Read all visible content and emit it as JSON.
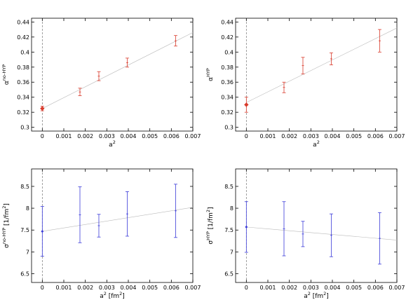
{
  "chart_data": [
    {
      "type": "scatter",
      "xlabel": "a",
      "xlabel_sup": "2",
      "xlabel_unit": "",
      "ylabel": "α",
      "ylabel_sup": "no-HYP",
      "ylabel_unit": "",
      "xlim": [
        -0.0005,
        0.007
      ],
      "ylim": [
        0.295,
        0.445
      ],
      "xticks": [
        0,
        0.001,
        0.002,
        0.003,
        0.004,
        0.005,
        0.006,
        0.007
      ],
      "yticks": [
        0.3,
        0.32,
        0.34,
        0.36,
        0.38,
        0.4,
        0.42,
        0.44
      ],
      "color": "#d93a2b",
      "points": [
        {
          "x": 0.00175,
          "y": 0.347,
          "err": 0.005
        },
        {
          "x": 0.00263,
          "y": 0.368,
          "err": 0.006
        },
        {
          "x": 0.00395,
          "y": 0.386,
          "err": 0.006
        },
        {
          "x": 0.0062,
          "y": 0.415,
          "err": 0.007
        }
      ],
      "extrapolated": {
        "x": 0,
        "y": 0.325,
        "err": 0.003
      },
      "fit": {
        "y0": 0.325,
        "y1": 0.426
      }
    },
    {
      "type": "scatter",
      "xlabel": "a",
      "xlabel_sup": "2",
      "xlabel_unit": "",
      "ylabel": "α",
      "ylabel_sup": "HYP",
      "ylabel_unit": "",
      "xlim": [
        -0.0005,
        0.007
      ],
      "ylim": [
        0.295,
        0.445
      ],
      "xticks": [
        0,
        0.001,
        0.002,
        0.003,
        0.004,
        0.005,
        0.006,
        0.007
      ],
      "yticks": [
        0.3,
        0.32,
        0.34,
        0.36,
        0.38,
        0.4,
        0.42,
        0.44
      ],
      "color": "#d93a2b",
      "points": [
        {
          "x": 0.00175,
          "y": 0.353,
          "err": 0.007
        },
        {
          "x": 0.00263,
          "y": 0.382,
          "err": 0.011
        },
        {
          "x": 0.00395,
          "y": 0.391,
          "err": 0.008
        },
        {
          "x": 0.0062,
          "y": 0.415,
          "err": 0.015
        }
      ],
      "extrapolated": {
        "x": 0,
        "y": 0.33,
        "err": 0.01
      },
      "fit": {
        "y0": 0.333,
        "y1": 0.432
      }
    },
    {
      "type": "scatter",
      "xlabel": "a",
      "xlabel_sup": "2",
      "xlabel_unit": " [fm",
      "ylabel": "σ",
      "ylabel_sup": "no-HYP",
      "ylabel_unit": " [1/fm",
      "unit_sup": "2",
      "xlim": [
        -0.0005,
        0.007
      ],
      "ylim": [
        6.3,
        8.9
      ],
      "xticks": [
        0,
        0.001,
        0.002,
        0.003,
        0.004,
        0.005,
        0.006,
        0.007
      ],
      "yticks": [
        6.5,
        7,
        7.5,
        8,
        8.5
      ],
      "color": "#3a3ad9",
      "points": [
        {
          "x": 0.00175,
          "y": 7.85,
          "err": 0.64
        },
        {
          "x": 0.00263,
          "y": 7.6,
          "err": 0.26
        },
        {
          "x": 0.00395,
          "y": 7.87,
          "err": 0.51
        },
        {
          "x": 0.0062,
          "y": 7.94,
          "err": 0.61
        }
      ],
      "extrapolated": {
        "x": 0,
        "y": 7.47,
        "err": 0.57
      },
      "fit": {
        "y0": 7.47,
        "y1": 8.02
      }
    },
    {
      "type": "scatter",
      "xlabel": "a",
      "xlabel_sup": "2",
      "xlabel_unit": " [fm",
      "ylabel": "σ",
      "ylabel_sup": "HYP",
      "ylabel_unit": " [1/fm",
      "unit_sup": "2",
      "xlim": [
        -0.0005,
        0.007
      ],
      "ylim": [
        6.3,
        8.9
      ],
      "xticks": [
        0,
        0.001,
        0.002,
        0.003,
        0.004,
        0.005,
        0.006,
        0.007
      ],
      "yticks": [
        6.5,
        7,
        7.5,
        8,
        8.5
      ],
      "color": "#3a3ad9",
      "points": [
        {
          "x": 0.00175,
          "y": 7.53,
          "err": 0.62
        },
        {
          "x": 0.00263,
          "y": 7.41,
          "err": 0.29
        },
        {
          "x": 0.00395,
          "y": 7.38,
          "err": 0.49
        },
        {
          "x": 0.0062,
          "y": 7.31,
          "err": 0.59
        }
      ],
      "extrapolated": {
        "x": 0,
        "y": 7.57,
        "err": 0.58
      },
      "fit": {
        "y0": 7.57,
        "y1": 7.27
      }
    }
  ]
}
